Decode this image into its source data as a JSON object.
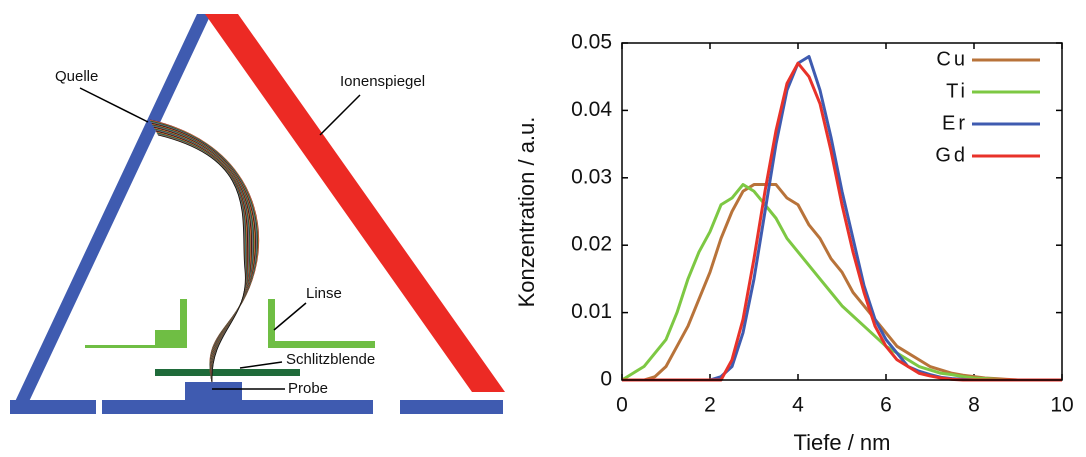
{
  "diagram": {
    "labels": [
      "Quelle",
      "Ionenspiegel",
      "Linse",
      "Schlitzblende",
      "Probe"
    ]
  },
  "chart_data": {
    "type": "line",
    "xlabel": "Tiefe / nm",
    "ylabel": "Konzentration / a.u.",
    "x": [
      0,
      0.25,
      0.5,
      0.75,
      1,
      1.25,
      1.5,
      1.75,
      2,
      2.25,
      2.5,
      2.75,
      3,
      3.25,
      3.5,
      3.75,
      4,
      4.25,
      4.5,
      4.75,
      5,
      5.25,
      5.5,
      5.75,
      6,
      6.25,
      6.5,
      6.75,
      7,
      7.25,
      7.5,
      7.75,
      8,
      8.25,
      8.5,
      8.75,
      9,
      9.25,
      9.5,
      9.75,
      10
    ],
    "series": [
      {
        "name": "Cu",
        "color": "#b8733a",
        "values": [
          0,
          0,
          0,
          0.0005,
          0.002,
          0.005,
          0.008,
          0.012,
          0.016,
          0.021,
          0.025,
          0.028,
          0.029,
          0.029,
          0.029,
          0.027,
          0.026,
          0.023,
          0.021,
          0.018,
          0.016,
          0.013,
          0.011,
          0.009,
          0.007,
          0.005,
          0.004,
          0.003,
          0.002,
          0.0015,
          0.001,
          0.0007,
          0.0005,
          0.0003,
          0.0002,
          0.0001,
          0,
          0,
          0,
          0,
          0
        ]
      },
      {
        "name": "Ti",
        "color": "#7dc843",
        "values": [
          0,
          0.001,
          0.002,
          0.004,
          0.006,
          0.01,
          0.015,
          0.019,
          0.022,
          0.026,
          0.027,
          0.029,
          0.028,
          0.026,
          0.024,
          0.021,
          0.019,
          0.017,
          0.015,
          0.013,
          0.011,
          0.0095,
          0.008,
          0.0065,
          0.005,
          0.004,
          0.003,
          0.002,
          0.0015,
          0.001,
          0.0008,
          0.0005,
          0.0003,
          0.0002,
          0.0001,
          0,
          0,
          0,
          0,
          0,
          0
        ]
      },
      {
        "name": "Er",
        "color": "#3f5bb0",
        "values": [
          0,
          0,
          0,
          0,
          0,
          0,
          0,
          0,
          0,
          0.0005,
          0.002,
          0.007,
          0.015,
          0.025,
          0.035,
          0.043,
          0.047,
          0.048,
          0.043,
          0.036,
          0.028,
          0.021,
          0.014,
          0.009,
          0.006,
          0.004,
          0.002,
          0.0013,
          0.0008,
          0.0004,
          0.0002,
          0.0001,
          0,
          0,
          0,
          0,
          0,
          0,
          0,
          0,
          0
        ]
      },
      {
        "name": "Gd",
        "color": "#e8322a",
        "values": [
          0,
          0,
          0,
          0,
          0,
          0,
          0,
          0,
          0,
          0,
          0.003,
          0.009,
          0.018,
          0.028,
          0.037,
          0.044,
          0.047,
          0.045,
          0.041,
          0.034,
          0.026,
          0.019,
          0.013,
          0.008,
          0.005,
          0.003,
          0.002,
          0.001,
          0.0006,
          0.0003,
          0.0001,
          0,
          0,
          0,
          0,
          0,
          0,
          0,
          0,
          0,
          0
        ]
      }
    ],
    "xlim": [
      0,
      10
    ],
    "xticks": [
      0,
      2,
      4,
      6,
      8,
      10
    ],
    "ylim": [
      0,
      0.05
    ],
    "yticks": [
      0,
      0.01,
      0.02,
      0.03,
      0.04,
      0.05
    ],
    "legend": "top-right"
  }
}
